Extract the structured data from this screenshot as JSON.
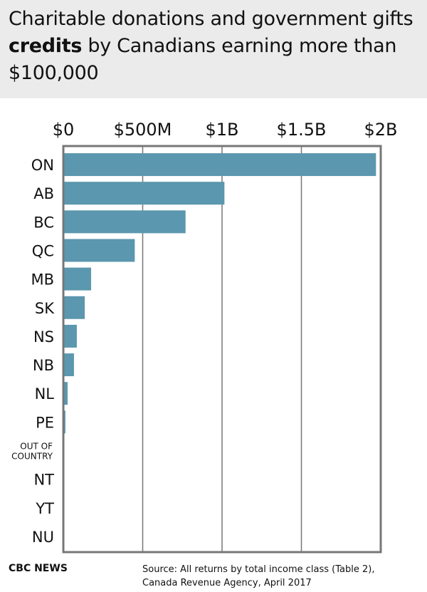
{
  "title": {
    "pre": "Charitable donations and government gifts ",
    "bold": "credits",
    "post": " by Canadians earning more than $100,000"
  },
  "chart_data": {
    "type": "bar",
    "orientation": "horizontal",
    "categories": [
      "ON",
      "AB",
      "BC",
      "QC",
      "MB",
      "SK",
      "NS",
      "NB",
      "NL",
      "PE",
      "OUT OF COUNTRY",
      "NT",
      "YT",
      "NU"
    ],
    "values": [
      1970000000,
      1015000000,
      770000000,
      450000000,
      175000000,
      135000000,
      85000000,
      67000000,
      27000000,
      13000000,
      5000000,
      0,
      0,
      0
    ],
    "xlim": [
      0,
      2000000000
    ],
    "xticks": [
      0,
      500000000,
      1000000000,
      1500000000,
      2000000000
    ],
    "xtick_labels": [
      "$0",
      "$500M",
      "$1B",
      "$1.5B",
      "$2B"
    ],
    "xaxis_position": "top",
    "grid": true,
    "bar_color": "#5b97ae"
  },
  "footer": {
    "brand": "CBC NEWS",
    "source_line1": "Source: All returns by total income class (Table 2),",
    "source_line2": "Canada Revenue Agency, April 2017"
  }
}
